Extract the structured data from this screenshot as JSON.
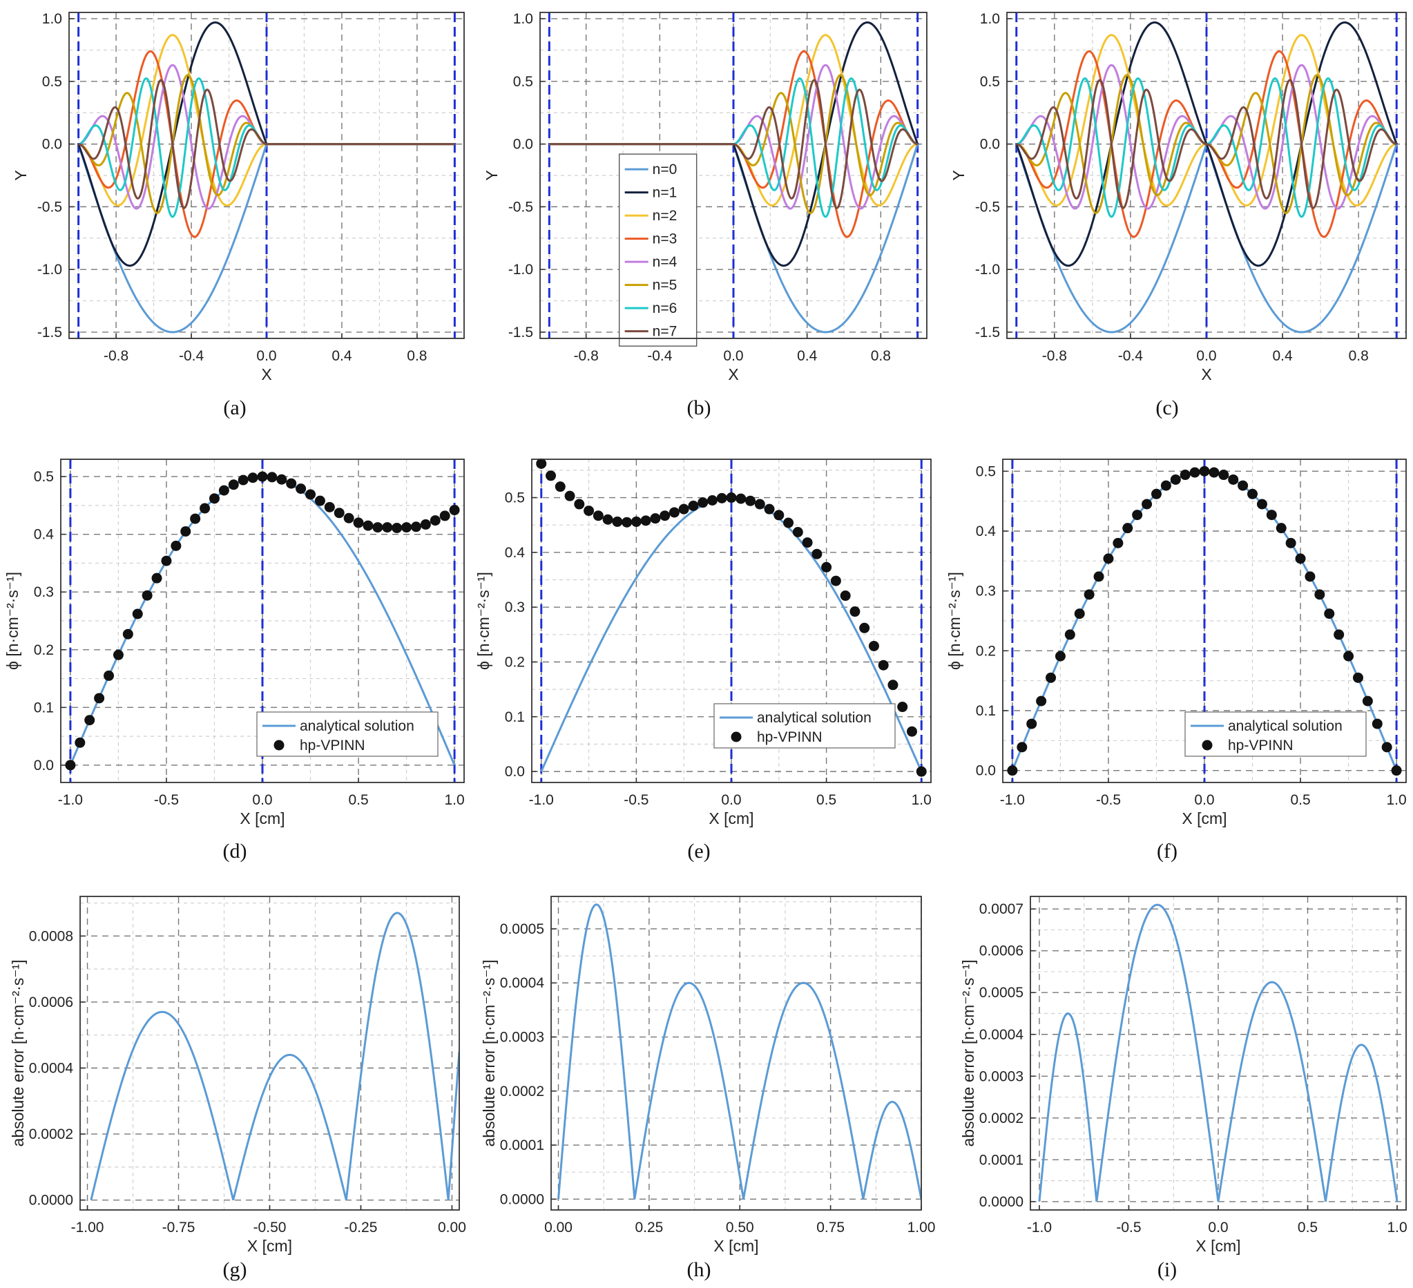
{
  "figure": {
    "colors": {
      "frame": "#333333",
      "grid_major": "#777777",
      "grid_minor": "#cfcfcf",
      "boundary": "#1f2fd6",
      "analytical": "#5b9bd5",
      "marker": "#111111"
    }
  },
  "chart_data": [
    {
      "id": "a",
      "caption": "(a)",
      "type": "line",
      "kind": "basis",
      "domain": [
        -1,
        0
      ],
      "xlabel": "X",
      "ylabel": "Y",
      "xlim": [
        -1.05,
        1.05
      ],
      "ylim": [
        -1.55,
        1.05
      ],
      "xticks": [
        -0.8,
        -0.4,
        0.0,
        0.4,
        0.8
      ],
      "xticklabels": [
        "-0.8",
        "-0.4",
        "0.0",
        "0.4",
        "0.8"
      ],
      "yticks": [
        -1.5,
        -1.0,
        -0.5,
        0.0,
        0.5,
        1.0
      ],
      "yticklabels": [
        "-1.5",
        "-1.0",
        "-0.5",
        "0.0",
        "0.5",
        "1.0"
      ],
      "boundaries": [
        -1,
        0,
        1
      ],
      "series": [
        {
          "name": "n=0",
          "color": "#5b9bd5",
          "amplitude": 1.5
        },
        {
          "name": "n=1",
          "color": "#14213d",
          "amplitude": 0.97
        },
        {
          "name": "n=2",
          "color": "#f4c430",
          "amplitude": 0.87
        },
        {
          "name": "n=3",
          "color": "#ec5a24",
          "amplitude": 0.74
        },
        {
          "name": "n=4",
          "color": "#c07ee0",
          "amplitude": 0.63
        },
        {
          "name": "n=5",
          "color": "#c9a000",
          "amplitude": 0.55
        },
        {
          "name": "n=6",
          "color": "#1ec8c8",
          "amplitude": 0.58
        },
        {
          "name": "n=7",
          "color": "#7b4a3f",
          "amplitude": 0.51
        }
      ]
    },
    {
      "id": "b",
      "caption": "(b)",
      "type": "line",
      "kind": "basis",
      "domain": [
        0,
        1
      ],
      "xlabel": "X",
      "ylabel": "Y",
      "xlim": [
        -1.05,
        1.05
      ],
      "ylim": [
        -1.55,
        1.05
      ],
      "xticks": [
        -0.8,
        -0.4,
        0.0,
        0.4,
        0.8
      ],
      "xticklabels": [
        "-0.8",
        "-0.4",
        "0.0",
        "0.4",
        "0.8"
      ],
      "yticks": [
        -1.5,
        -1.0,
        -0.5,
        0.0,
        0.5,
        1.0
      ],
      "yticklabels": [
        "-1.5",
        "-1.0",
        "-0.5",
        "0.0",
        "0.5",
        "1.0"
      ],
      "boundaries": [
        -1,
        0,
        1
      ],
      "legend": true,
      "series": [
        {
          "name": "n=0",
          "color": "#5b9bd5",
          "amplitude": 1.5
        },
        {
          "name": "n=1",
          "color": "#14213d",
          "amplitude": 0.97
        },
        {
          "name": "n=2",
          "color": "#f4c430",
          "amplitude": 0.87
        },
        {
          "name": "n=3",
          "color": "#ec5a24",
          "amplitude": 0.74
        },
        {
          "name": "n=4",
          "color": "#c07ee0",
          "amplitude": 0.63
        },
        {
          "name": "n=5",
          "color": "#c9a000",
          "amplitude": 0.55
        },
        {
          "name": "n=6",
          "color": "#1ec8c8",
          "amplitude": 0.58
        },
        {
          "name": "n=7",
          "color": "#7b4a3f",
          "amplitude": 0.51
        }
      ]
    },
    {
      "id": "c",
      "caption": "(c)",
      "type": "line",
      "kind": "basis",
      "domain": [
        -1,
        1
      ],
      "xlabel": "X",
      "ylabel": "Y",
      "xlim": [
        -1.05,
        1.05
      ],
      "ylim": [
        -1.55,
        1.05
      ],
      "xticks": [
        -0.8,
        -0.4,
        0.0,
        0.4,
        0.8
      ],
      "xticklabels": [
        "-0.8",
        "-0.4",
        "0.0",
        "0.4",
        "0.8"
      ],
      "yticks": [
        -1.5,
        -1.0,
        -0.5,
        0.0,
        0.5,
        1.0
      ],
      "yticklabels": [
        "-1.5",
        "-1.0",
        "-0.5",
        "0.0",
        "0.5",
        "1.0"
      ],
      "boundaries": [
        -1,
        0,
        1
      ],
      "series": [
        {
          "name": "n=0",
          "color": "#5b9bd5",
          "amplitude": 1.5
        },
        {
          "name": "n=1",
          "color": "#14213d",
          "amplitude": 0.97
        },
        {
          "name": "n=2",
          "color": "#f4c430",
          "amplitude": 0.87
        },
        {
          "name": "n=3",
          "color": "#ec5a24",
          "amplitude": 0.74
        },
        {
          "name": "n=4",
          "color": "#c07ee0",
          "amplitude": 0.63
        },
        {
          "name": "n=5",
          "color": "#c9a000",
          "amplitude": 0.55
        },
        {
          "name": "n=6",
          "color": "#1ec8c8",
          "amplitude": 0.58
        },
        {
          "name": "n=7",
          "color": "#7b4a3f",
          "amplitude": 0.51
        }
      ]
    },
    {
      "id": "d",
      "caption": "(d)",
      "type": "line+scatter",
      "kind": "solution",
      "xlabel": "X  [cm]",
      "ylabel": "ϕ  [n·cm⁻²·s⁻¹]",
      "xlim": [
        -1.05,
        1.05
      ],
      "ylim": [
        -0.03,
        0.53
      ],
      "xticks": [
        -1.0,
        -0.5,
        0.0,
        0.5,
        1.0
      ],
      "xticklabels": [
        "-1.0",
        "-0.5",
        "0.0",
        "0.5",
        "1.0"
      ],
      "yticks": [
        0.0,
        0.1,
        0.2,
        0.3,
        0.4,
        0.5
      ],
      "yticklabels": [
        "0.0",
        "0.1",
        "0.2",
        "0.3",
        "0.4",
        "0.5"
      ],
      "boundaries": [
        -1,
        0,
        1
      ],
      "legend_entries": [
        "analytical solution",
        "hp-VPINN"
      ],
      "analytical": {
        "x": [
          -1.0,
          -0.75,
          -0.5,
          -0.25,
          0.0,
          0.25,
          0.5,
          0.75,
          1.0
        ],
        "y": [
          0.0,
          0.191,
          0.354,
          0.462,
          0.5,
          0.462,
          0.354,
          0.191,
          0.0
        ]
      },
      "points": {
        "x": [
          -1.0,
          -0.95,
          -0.9,
          -0.85,
          -0.8,
          -0.75,
          -0.7,
          -0.65,
          -0.6,
          -0.55,
          -0.5,
          -0.45,
          -0.4,
          -0.35,
          -0.3,
          -0.25,
          -0.2,
          -0.15,
          -0.1,
          -0.05,
          0.0,
          0.05,
          0.1,
          0.15,
          0.2,
          0.25,
          0.3,
          0.35,
          0.4,
          0.45,
          0.5,
          0.55,
          0.6,
          0.65,
          0.7,
          0.75,
          0.8,
          0.85,
          0.9,
          0.95,
          1.0
        ],
        "y": [
          0.0,
          0.039,
          0.078,
          0.116,
          0.155,
          0.191,
          0.227,
          0.262,
          0.294,
          0.324,
          0.354,
          0.38,
          0.405,
          0.427,
          0.445,
          0.462,
          0.476,
          0.486,
          0.494,
          0.498,
          0.5,
          0.499,
          0.495,
          0.488,
          0.479,
          0.469,
          0.458,
          0.447,
          0.437,
          0.428,
          0.42,
          0.415,
          0.412,
          0.412,
          0.411,
          0.412,
          0.413,
          0.417,
          0.424,
          0.432,
          0.442
        ]
      }
    },
    {
      "id": "e",
      "caption": "(e)",
      "type": "line+scatter",
      "kind": "solution",
      "xlabel": "X  [cm]",
      "ylabel": "ϕ  [n·cm⁻²·s⁻¹]",
      "xlim": [
        -1.05,
        1.05
      ],
      "ylim": [
        -0.02,
        0.57
      ],
      "xticks": [
        -1.0,
        -0.5,
        0.0,
        0.5,
        1.0
      ],
      "xticklabels": [
        "-1.0",
        "-0.5",
        "0.0",
        "0.5",
        "1.0"
      ],
      "yticks": [
        0.0,
        0.1,
        0.2,
        0.3,
        0.4,
        0.5
      ],
      "yticklabels": [
        "0.0",
        "0.1",
        "0.2",
        "0.3",
        "0.4",
        "0.5"
      ],
      "boundaries": [
        -1,
        0,
        1
      ],
      "legend_entries": [
        "analytical solution",
        "hp-VPINN"
      ],
      "analytical": {
        "x": [
          -1.0,
          -0.75,
          -0.5,
          -0.25,
          0.0,
          0.25,
          0.5,
          0.75,
          1.0
        ],
        "y": [
          0.0,
          0.191,
          0.354,
          0.462,
          0.5,
          0.462,
          0.354,
          0.191,
          0.0
        ]
      },
      "points": {
        "x": [
          -1.0,
          -0.95,
          -0.9,
          -0.85,
          -0.8,
          -0.75,
          -0.7,
          -0.65,
          -0.6,
          -0.55,
          -0.5,
          -0.45,
          -0.4,
          -0.35,
          -0.3,
          -0.25,
          -0.2,
          -0.15,
          -0.1,
          -0.05,
          0.0,
          0.05,
          0.1,
          0.15,
          0.2,
          0.25,
          0.3,
          0.35,
          0.4,
          0.45,
          0.5,
          0.55,
          0.6,
          0.65,
          0.7,
          0.75,
          0.8,
          0.85,
          0.9,
          0.95,
          1.0
        ],
        "y": [
          0.562,
          0.54,
          0.52,
          0.503,
          0.488,
          0.476,
          0.467,
          0.46,
          0.456,
          0.455,
          0.456,
          0.458,
          0.462,
          0.467,
          0.473,
          0.479,
          0.485,
          0.491,
          0.495,
          0.499,
          0.5,
          0.498,
          0.494,
          0.488,
          0.479,
          0.468,
          0.454,
          0.437,
          0.418,
          0.397,
          0.373,
          0.348,
          0.321,
          0.292,
          0.262,
          0.229,
          0.194,
          0.158,
          0.118,
          0.073,
          0.0
        ]
      }
    },
    {
      "id": "f",
      "caption": "(f)",
      "type": "line+scatter",
      "kind": "solution",
      "xlabel": "X  [cm]",
      "ylabel": "ϕ  [n·cm⁻²·s⁻¹]",
      "xlim": [
        -1.05,
        1.05
      ],
      "ylim": [
        -0.02,
        0.52
      ],
      "xticks": [
        -1.0,
        -0.5,
        0.0,
        0.5,
        1.0
      ],
      "xticklabels": [
        "-1.0",
        "-0.5",
        "0.0",
        "0.5",
        "1.0"
      ],
      "yticks": [
        0.0,
        0.1,
        0.2,
        0.3,
        0.4,
        0.5
      ],
      "yticklabels": [
        "0.0",
        "0.1",
        "0.2",
        "0.3",
        "0.4",
        "0.5"
      ],
      "boundaries": [
        -1,
        0,
        1
      ],
      "legend_entries": [
        "analytical solution",
        "hp-VPINN"
      ],
      "analytical": {
        "x": [
          -1.0,
          -0.75,
          -0.5,
          -0.25,
          0.0,
          0.25,
          0.5,
          0.75,
          1.0
        ],
        "y": [
          0.0,
          0.191,
          0.354,
          0.462,
          0.5,
          0.462,
          0.354,
          0.191,
          0.0
        ]
      },
      "points": {
        "x": [
          -1.0,
          -0.95,
          -0.9,
          -0.85,
          -0.8,
          -0.75,
          -0.7,
          -0.65,
          -0.6,
          -0.55,
          -0.5,
          -0.45,
          -0.4,
          -0.35,
          -0.3,
          -0.25,
          -0.2,
          -0.15,
          -0.1,
          -0.05,
          0.0,
          0.05,
          0.1,
          0.15,
          0.2,
          0.25,
          0.3,
          0.35,
          0.4,
          0.45,
          0.5,
          0.55,
          0.6,
          0.65,
          0.7,
          0.75,
          0.8,
          0.85,
          0.9,
          0.95,
          1.0
        ],
        "y": [
          0.0,
          0.039,
          0.078,
          0.116,
          0.155,
          0.191,
          0.227,
          0.262,
          0.294,
          0.324,
          0.354,
          0.38,
          0.405,
          0.427,
          0.445,
          0.462,
          0.476,
          0.486,
          0.494,
          0.498,
          0.5,
          0.498,
          0.494,
          0.486,
          0.476,
          0.462,
          0.445,
          0.427,
          0.405,
          0.38,
          0.354,
          0.324,
          0.294,
          0.262,
          0.227,
          0.191,
          0.155,
          0.116,
          0.078,
          0.039,
          0.0
        ]
      }
    },
    {
      "id": "g",
      "caption": "(g)",
      "type": "line",
      "kind": "error",
      "xlabel": "X  [cm]",
      "ylabel": "absolute error  [n·cm⁻²·s⁻¹]",
      "xlim": [
        -1.02,
        0.02
      ],
      "ylim": [
        -3e-05,
        0.00092
      ],
      "xticks": [
        -1.0,
        -0.75,
        -0.5,
        -0.25,
        0.0
      ],
      "xticklabels": [
        "-1.00",
        "-0.75",
        "-0.50",
        "-0.25",
        "0.00"
      ],
      "yticks": [
        0.0,
        0.0002,
        0.0004,
        0.0006,
        0.0008
      ],
      "yticklabels": [
        "0.0000",
        "0.0002",
        "0.0004",
        "0.0006",
        "0.0008"
      ],
      "zeros": [
        -0.99,
        -0.6,
        -0.29,
        -0.01
      ],
      "peaks": [
        0.00057,
        0.00044,
        0.00087
      ],
      "tail": {
        "x": 0.02,
        "y": 0.00045
      }
    },
    {
      "id": "h",
      "caption": "(h)",
      "type": "line",
      "kind": "error",
      "xlabel": "X  [cm]",
      "ylabel": "absolute error  [n·cm⁻²·s⁻¹]",
      "xlim": [
        -0.02,
        1.0
      ],
      "ylim": [
        -2e-05,
        0.00056
      ],
      "xticks": [
        0.0,
        0.25,
        0.5,
        0.75,
        1.0
      ],
      "xticklabels": [
        "0.00",
        "0.25",
        "0.50",
        "0.75",
        "1.00"
      ],
      "yticks": [
        0.0,
        0.0001,
        0.0002,
        0.0003,
        0.0004,
        0.0005
      ],
      "yticklabels": [
        "0.0000",
        "0.0001",
        "0.0002",
        "0.0003",
        "0.0004",
        "0.0005"
      ],
      "zeros": [
        0.0,
        0.21,
        0.51,
        0.84,
        1.0
      ],
      "peaks": [
        0.000545,
        0.0004,
        0.0004,
        0.00018
      ]
    },
    {
      "id": "i",
      "caption": "(i)",
      "type": "line",
      "kind": "error",
      "xlabel": "X  [cm]",
      "ylabel": "absolute error  [n·cm⁻²·s⁻¹]",
      "xlim": [
        -1.05,
        1.05
      ],
      "ylim": [
        -2e-05,
        0.00073
      ],
      "xticks": [
        -1.0,
        -0.5,
        0.0,
        0.5,
        1.0
      ],
      "xticklabels": [
        "-1.0",
        "-0.5",
        "0.0",
        "0.5",
        "1.0"
      ],
      "yticks": [
        0.0,
        0.0001,
        0.0002,
        0.0003,
        0.0004,
        0.0005,
        0.0006,
        0.0007
      ],
      "yticklabels": [
        "0.0000",
        "0.0001",
        "0.0002",
        "0.0003",
        "0.0004",
        "0.0005",
        "0.0006",
        "0.0007"
      ],
      "zeros": [
        -1.0,
        -0.68,
        0.0,
        0.6,
        1.0
      ],
      "peaks": [
        0.00045,
        0.00071,
        0.000525,
        0.000375
      ]
    }
  ]
}
